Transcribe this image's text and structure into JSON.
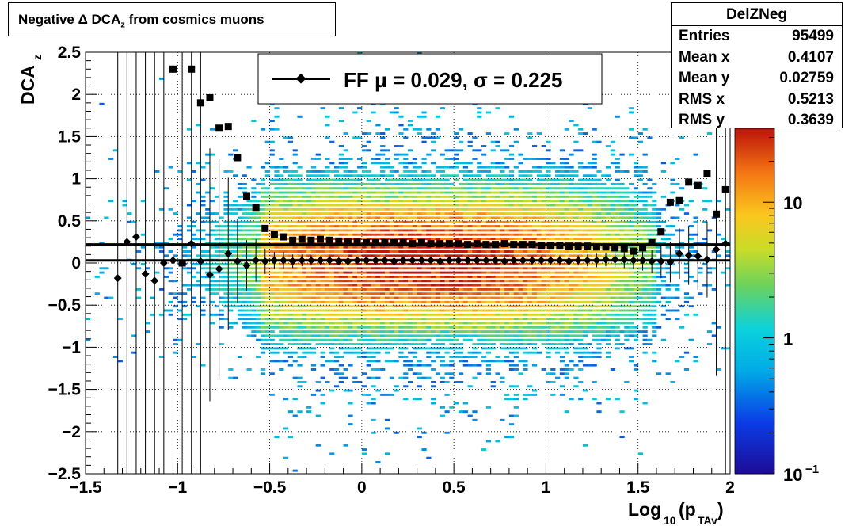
{
  "chart_data": {
    "type": "heatmap",
    "title": "Negative Δ DCA_z from cosmics muons",
    "xlabel": "Log_10(p_TAv)",
    "ylabel": "DCA_z",
    "xlim": [
      -1.5,
      2
    ],
    "ylim": [
      -2.5,
      2.5
    ],
    "x_ticks": [
      "−1.5",
      "−1",
      "−0.5",
      "0",
      "0.5",
      "1",
      "1.5",
      "2"
    ],
    "x_tick_values": [
      -1.5,
      -1,
      -0.5,
      0,
      0.5,
      1,
      1.5,
      2
    ],
    "y_ticks": [
      "−2.5",
      "−2",
      "−1.5",
      "−1",
      "−0.5",
      "0",
      "0.5",
      "1",
      "1.5",
      "2",
      "2.5"
    ],
    "y_tick_values": [
      -2.5,
      -2,
      -1.5,
      -1,
      -0.5,
      0,
      0.5,
      1,
      1.5,
      2,
      2.5
    ],
    "grid": true,
    "colorbar": {
      "scale": "log",
      "range": [
        0.1,
        35
      ],
      "tick_labels": [
        {
          "value": 0.1,
          "base": "10",
          "exp": "−1"
        },
        {
          "value": 1,
          "base": "1",
          "exp": ""
        },
        {
          "value": 10,
          "base": "10",
          "exp": ""
        }
      ]
    },
    "legend": {
      "placement": "top-center",
      "entry": "FF μ =  0.029, σ =   0.225"
    },
    "stats": {
      "name": "DelZNeg",
      "rows": [
        {
          "key": "Entries",
          "value": "95499"
        },
        {
          "key": "Mean x",
          "value": "0.4107"
        },
        {
          "key": "Mean y",
          "value": "0.02759"
        },
        {
          "key": "RMS x",
          "value": "0.5213"
        },
        {
          "key": "RMS y",
          "value": "0.3639"
        }
      ]
    },
    "reference_lines": [
      0.03,
      0.22
    ],
    "mean_series": {
      "marker": "diamond",
      "x": [
        -1.325,
        -1.275,
        -1.225,
        -1.175,
        -1.125,
        -1.075,
        -1.025,
        -0.975,
        -0.925,
        -0.875,
        -0.825,
        -0.775,
        -0.725,
        -0.675,
        -0.625,
        -0.575,
        -0.525,
        -0.475,
        -0.425,
        -0.375,
        -0.325,
        -0.275,
        -0.225,
        -0.175,
        -0.125,
        -0.075,
        -0.025,
        0.025,
        0.075,
        0.125,
        0.175,
        0.225,
        0.275,
        0.325,
        0.375,
        0.425,
        0.475,
        0.525,
        0.575,
        0.625,
        0.675,
        0.725,
        0.775,
        0.825,
        0.875,
        0.925,
        0.975,
        1.025,
        1.075,
        1.125,
        1.175,
        1.225,
        1.275,
        1.325,
        1.375,
        1.425,
        1.475,
        1.525,
        1.575,
        1.625,
        1.675,
        1.725,
        1.775,
        1.825,
        1.875,
        1.925,
        1.975
      ],
      "y": [
        -0.18,
        0.25,
        0.31,
        -0.13,
        -0.21,
        0.0,
        0.03,
        0.0,
        0.23,
        0.02,
        -0.14,
        -0.07,
        0.11,
        0.02,
        -0.03,
        0.03,
        0.02,
        0.03,
        0.03,
        0.02,
        0.03,
        0.03,
        0.03,
        0.03,
        0.02,
        0.02,
        0.03,
        0.03,
        0.03,
        0.03,
        0.02,
        0.03,
        0.03,
        0.03,
        0.03,
        0.02,
        0.03,
        0.03,
        0.03,
        0.03,
        0.03,
        0.03,
        0.02,
        0.03,
        0.03,
        0.03,
        0.03,
        0.03,
        0.03,
        0.02,
        0.03,
        0.03,
        0.03,
        0.04,
        0.04,
        0.04,
        0.03,
        0.03,
        0.02,
        0.02,
        0.01,
        0.11,
        0.09,
        0.08,
        0.04,
        0.16,
        0.23
      ],
      "err": [
        3.0,
        3.0,
        3.0,
        3.0,
        3.0,
        3.0,
        3.0,
        3.0,
        3.0,
        3.0,
        1.5,
        1.3,
        0.9,
        0.5,
        0.3,
        0.25,
        0.15,
        0.1,
        0.1,
        0.08,
        0.07,
        0.06,
        0.05,
        0.05,
        0.04,
        0.04,
        0.04,
        0.04,
        0.04,
        0.04,
        0.04,
        0.04,
        0.04,
        0.04,
        0.04,
        0.04,
        0.04,
        0.04,
        0.04,
        0.04,
        0.04,
        0.04,
        0.04,
        0.04,
        0.05,
        0.05,
        0.05,
        0.05,
        0.06,
        0.06,
        0.06,
        0.07,
        0.08,
        0.08,
        0.09,
        0.1,
        0.1,
        0.12,
        0.14,
        0.2,
        0.24,
        0.3,
        0.35,
        0.4,
        0.45,
        1.5,
        3.0
      ]
    },
    "rms_series": {
      "marker": "square",
      "x": [
        -1.025,
        -0.975,
        -0.925,
        -0.875,
        -0.825,
        -0.775,
        -0.725,
        -0.675,
        -0.625,
        -0.575,
        -0.525,
        -0.475,
        -0.425,
        -0.375,
        -0.325,
        -0.275,
        -0.225,
        -0.175,
        -0.125,
        -0.075,
        -0.025,
        0.025,
        0.075,
        0.125,
        0.175,
        0.225,
        0.275,
        0.325,
        0.375,
        0.425,
        0.475,
        0.525,
        0.575,
        0.625,
        0.675,
        0.725,
        0.775,
        0.825,
        0.875,
        0.925,
        0.975,
        1.025,
        1.075,
        1.125,
        1.175,
        1.225,
        1.275,
        1.325,
        1.375,
        1.425,
        1.475,
        1.525,
        1.575,
        1.625,
        1.675,
        1.725,
        1.775,
        1.825,
        1.875,
        1.925,
        1.975
      ],
      "y": [
        2.3,
        0.0,
        2.3,
        1.9,
        1.96,
        1.6,
        1.62,
        1.25,
        0.79,
        0.66,
        0.41,
        0.34,
        0.31,
        0.27,
        0.28,
        0.27,
        0.28,
        0.27,
        0.26,
        0.25,
        0.25,
        0.24,
        0.24,
        0.24,
        0.24,
        0.24,
        0.23,
        0.24,
        0.23,
        0.23,
        0.23,
        0.23,
        0.22,
        0.23,
        0.22,
        0.22,
        0.23,
        0.22,
        0.22,
        0.22,
        0.21,
        0.21,
        0.21,
        0.2,
        0.2,
        0.2,
        0.19,
        0.19,
        0.18,
        0.17,
        0.14,
        0.18,
        0.24,
        0.37,
        0.72,
        0.74,
        0.96,
        0.92,
        1.06,
        0.58,
        0.87
      ]
    }
  }
}
